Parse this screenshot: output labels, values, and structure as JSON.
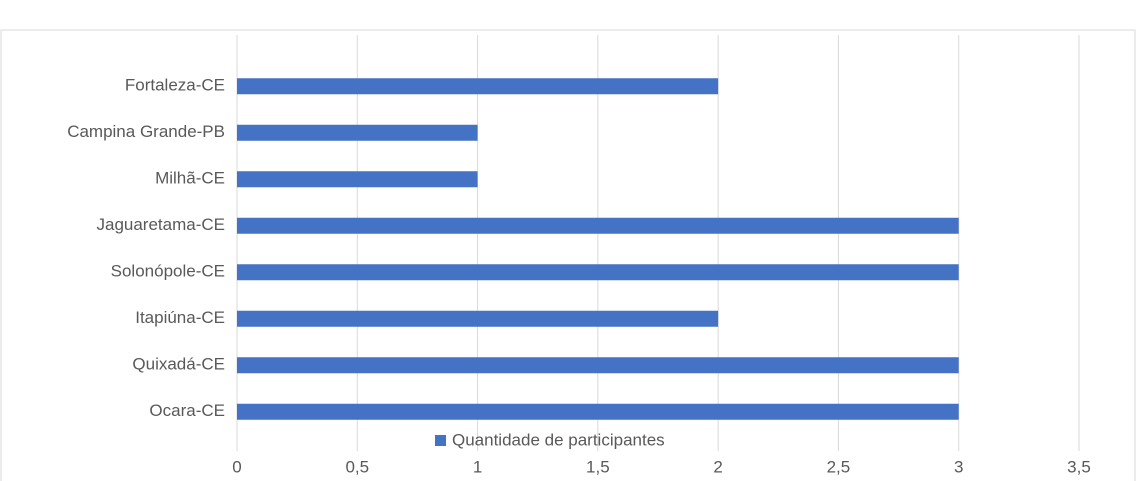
{
  "chart_data": {
    "type": "bar",
    "orientation": "horizontal",
    "categories": [
      "Ocara-CE",
      "Quixadá-CE",
      "Itapiúna-CE",
      "Solonópole-CE",
      "Jaguaretama-CE",
      "Milhã-CE",
      "Campina Grande-PB",
      "Fortaleza-CE"
    ],
    "series": [
      {
        "name": "Quantidade de participantes",
        "color": "#4472c4",
        "values": [
          3,
          3,
          2,
          3,
          3,
          1,
          1,
          2
        ]
      }
    ],
    "xlim": [
      0,
      3.5
    ],
    "xticks": [
      0,
      {
        "value": 0.5,
        "label": "0,5"
      },
      1,
      {
        "value": 1.5,
        "label": "1,5"
      },
      2,
      {
        "value": 2.5,
        "label": "2,5"
      },
      3,
      {
        "value": 3.5,
        "label": "3,5"
      }
    ],
    "grid": true,
    "legend": "bottom"
  }
}
